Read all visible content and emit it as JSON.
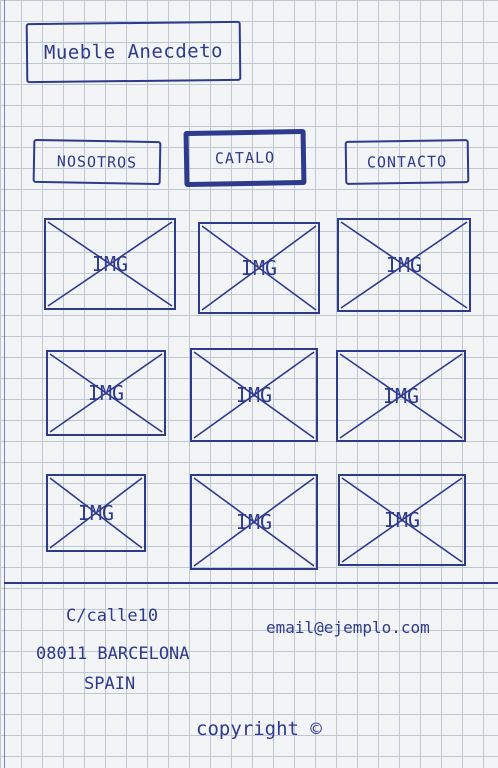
{
  "logo": {
    "text": "Mueble Anecdeto"
  },
  "nav": {
    "items": [
      {
        "label": "NOSOTROS"
      },
      {
        "label": "CATALO"
      },
      {
        "label": "CONTACTO"
      }
    ]
  },
  "gallery": {
    "items": [
      {
        "label": "IMG"
      },
      {
        "label": "IMG"
      },
      {
        "label": "IMG"
      },
      {
        "label": "IMG"
      },
      {
        "label": "IMG"
      },
      {
        "label": "IMG"
      },
      {
        "label": "IMG"
      },
      {
        "label": "IMG"
      },
      {
        "label": "IMG"
      }
    ]
  },
  "footer": {
    "address": [
      "C/calle10",
      "08011 BARCELONA",
      "SPAIN"
    ],
    "email": "email@ejemplo.com",
    "copyright": "copyright ©"
  }
}
